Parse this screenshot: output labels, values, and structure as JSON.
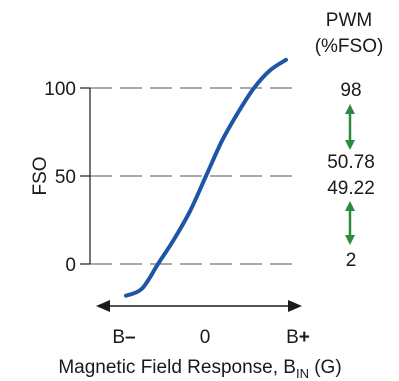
{
  "chart_data": {
    "type": "line",
    "xlabel": {
      "main": "Magnetic Field Response, B",
      "sub": "IN",
      "unit": " (G)"
    },
    "ylabel": "FSO",
    "ylim": [
      0,
      100
    ],
    "yticks": [
      "0",
      "50",
      "100"
    ],
    "xticks": [
      "B",
      "0",
      "B"
    ],
    "xtick_marks": [
      "–",
      "",
      "+"
    ],
    "right_axis": {
      "title_line1": "PWM",
      "title_line2": "(%FSO)",
      "labels": [
        "98",
        "50.78",
        "49.22",
        "2"
      ]
    },
    "grid": "dashed lines at 0, 50, 100",
    "series": [
      {
        "color": "#1f55a5",
        "x": [
          -1.0,
          -0.8,
          -0.6,
          -0.4,
          -0.2,
          0.0,
          0.2,
          0.4,
          0.6,
          0.8,
          1.0
        ],
        "y": [
          -18,
          -14,
          0,
          14,
          30,
          50,
          70,
          86,
          100,
          110,
          116
        ]
      }
    ],
    "arrow_color": "#2e8b3e"
  }
}
